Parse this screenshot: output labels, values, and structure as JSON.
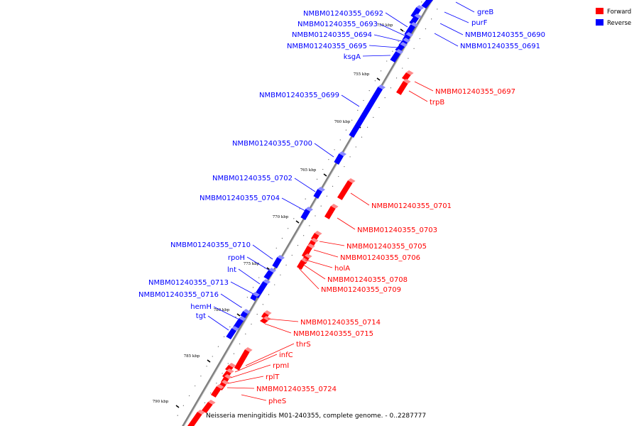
{
  "colors": {
    "forward": "#ff0000",
    "reverse": "#0000ff",
    "backbone": "#808080"
  },
  "legend": {
    "forward": "Forward",
    "reverse": "Reverse"
  },
  "caption": "Neisseria meningitidis M01-240355, complete genome. - 0..2287777",
  "ticks": [
    "750 kbp",
    "755 kbp",
    "760 kbp",
    "765 kbp",
    "770 kbp",
    "775 kbp",
    "780 kbp",
    "785 kbp",
    "790 kbp"
  ],
  "genes": {
    "reverse": [
      "greB",
      "purF",
      "NMBM01240355_0690",
      "NMBM01240355_0691",
      "NMBM01240355_0692",
      "NMBM01240355_0693",
      "NMBM01240355_0694",
      "NMBM01240355_0695",
      "ksgA",
      "NMBM01240355_0699",
      "NMBM01240355_0700",
      "NMBM01240355_0702",
      "NMBM01240355_0704",
      "NMBM01240355_0710",
      "rpoH",
      "lnt",
      "NMBM01240355_0713",
      "NMBM01240355_0716",
      "hemH",
      "tgt"
    ],
    "forward": [
      "NMBM01240355_0697",
      "trpB",
      "NMBM01240355_0701",
      "NMBM01240355_0703",
      "NMBM01240355_0705",
      "NMBM01240355_0706",
      "holA",
      "NMBM01240355_0708",
      "NMBM01240355_0709",
      "NMBM01240355_0714",
      "NMBM01240355_0715",
      "thrS",
      "infC",
      "rpmI",
      "rplT",
      "NMBM01240355_0724",
      "pheS"
    ]
  }
}
